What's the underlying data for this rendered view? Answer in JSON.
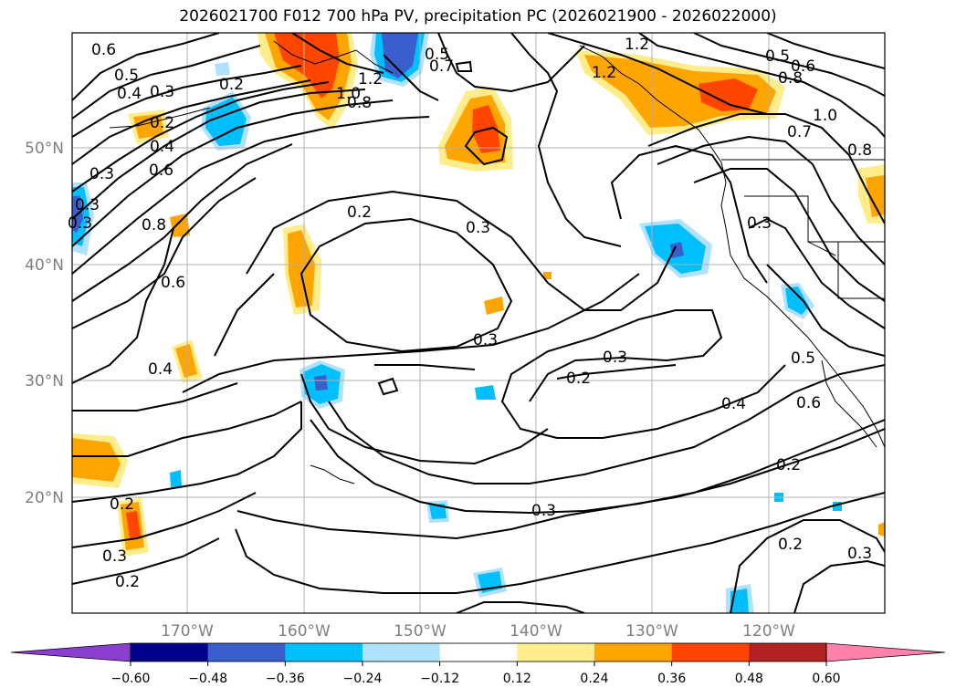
{
  "title": "2026021700 F012 700 hPa PV, precipitation PC (2026021900 - 2026022000)",
  "lat_labels": [
    "50°N",
    "40°N",
    "30°N",
    "20°N"
  ],
  "lon_labels": [
    "170°W",
    "160°W",
    "150°W",
    "140°W",
    "130°W",
    "120°W"
  ],
  "contour_labels": [
    "0.6",
    "0.5",
    "0.4",
    "0.3",
    "0.2",
    "0.2",
    "0.4",
    "0.3",
    "0.6",
    "0.8",
    "0.6",
    "0.4",
    "0.3",
    "0.2",
    "0.3",
    "0.5",
    "1.2",
    "1.0",
    "1.2",
    "0.7",
    "0.8",
    "1.2",
    "0.5",
    "0.6",
    "0.8",
    "1.0",
    "0.7",
    "0.8",
    "0.2",
    "0.3",
    "0.3",
    "0.3",
    "0.2",
    "0.3",
    "0.5",
    "0.6",
    "0.4",
    "0.2",
    "0.3",
    "0.2",
    "0.3",
    "0.2",
    "0.3"
  ],
  "colorbar": {
    "ticks": [
      "−0.60",
      "−0.48",
      "−0.36",
      "−0.24",
      "−0.12",
      "0.12",
      "0.24",
      "0.36",
      "0.48",
      "0.60"
    ],
    "colors": [
      "#8a3fd0",
      "#00008b",
      "#3a5fcd",
      "#00bfff",
      "#b0e2ff",
      "#ffffff",
      "#ffec8b",
      "#ffa500",
      "#ff4500",
      "#b22222",
      "#ff82ab"
    ]
  }
}
